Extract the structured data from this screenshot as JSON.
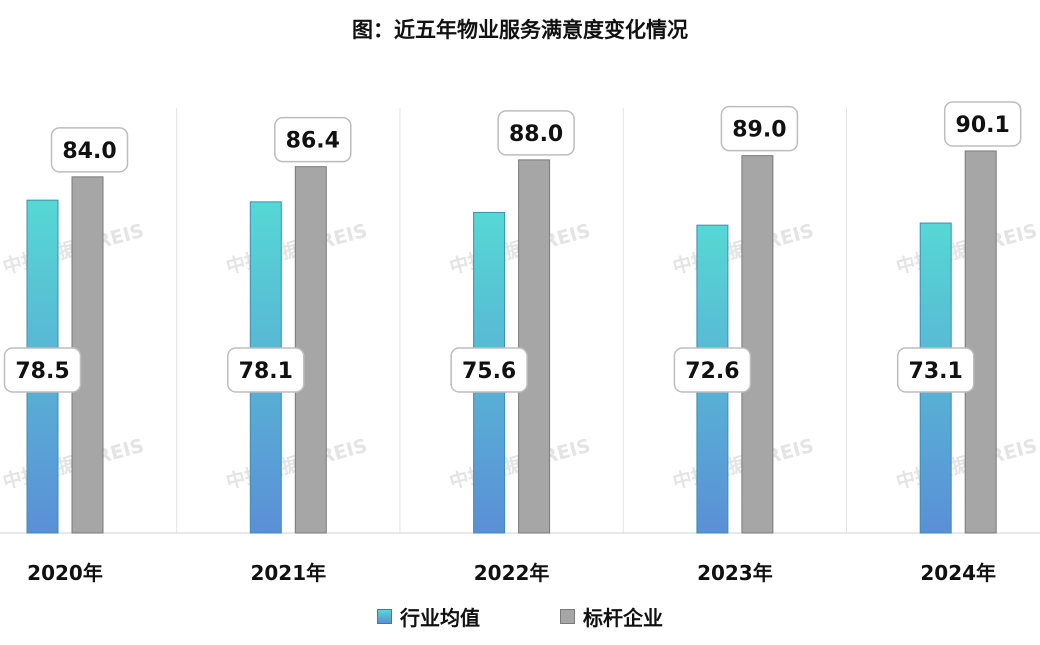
{
  "title": "图：近五年物业服务满意度变化情况",
  "watermark": "中指数据 CREIS",
  "colors": {
    "industry_top": "#56d8d4",
    "industry_bottom": "#5a8fd6",
    "benchmark": "#a6a6a6",
    "benchmark_border": "#7a7a7a"
  },
  "chart_data": {
    "type": "bar",
    "title": "图：近五年物业服务满意度变化情况",
    "categories": [
      "2020年",
      "2021年",
      "2022年",
      "2023年",
      "2024年"
    ],
    "series": [
      {
        "name": "行业均值",
        "values": [
          78.5,
          78.1,
          75.6,
          72.6,
          73.1
        ]
      },
      {
        "name": "标杆企业",
        "values": [
          84.0,
          86.4,
          88.0,
          89.0,
          90.1
        ]
      }
    ],
    "data_labels": [
      [
        "78.5",
        "78.1",
        "75.6",
        "72.6",
        "73.1"
      ],
      [
        "84.0",
        "86.4",
        "88.0",
        "89.0",
        "90.1"
      ]
    ],
    "ylim": [
      0,
      100
    ],
    "grid": "vertical category separators",
    "legend": "bottom",
    "xlabel": "",
    "ylabel": ""
  }
}
